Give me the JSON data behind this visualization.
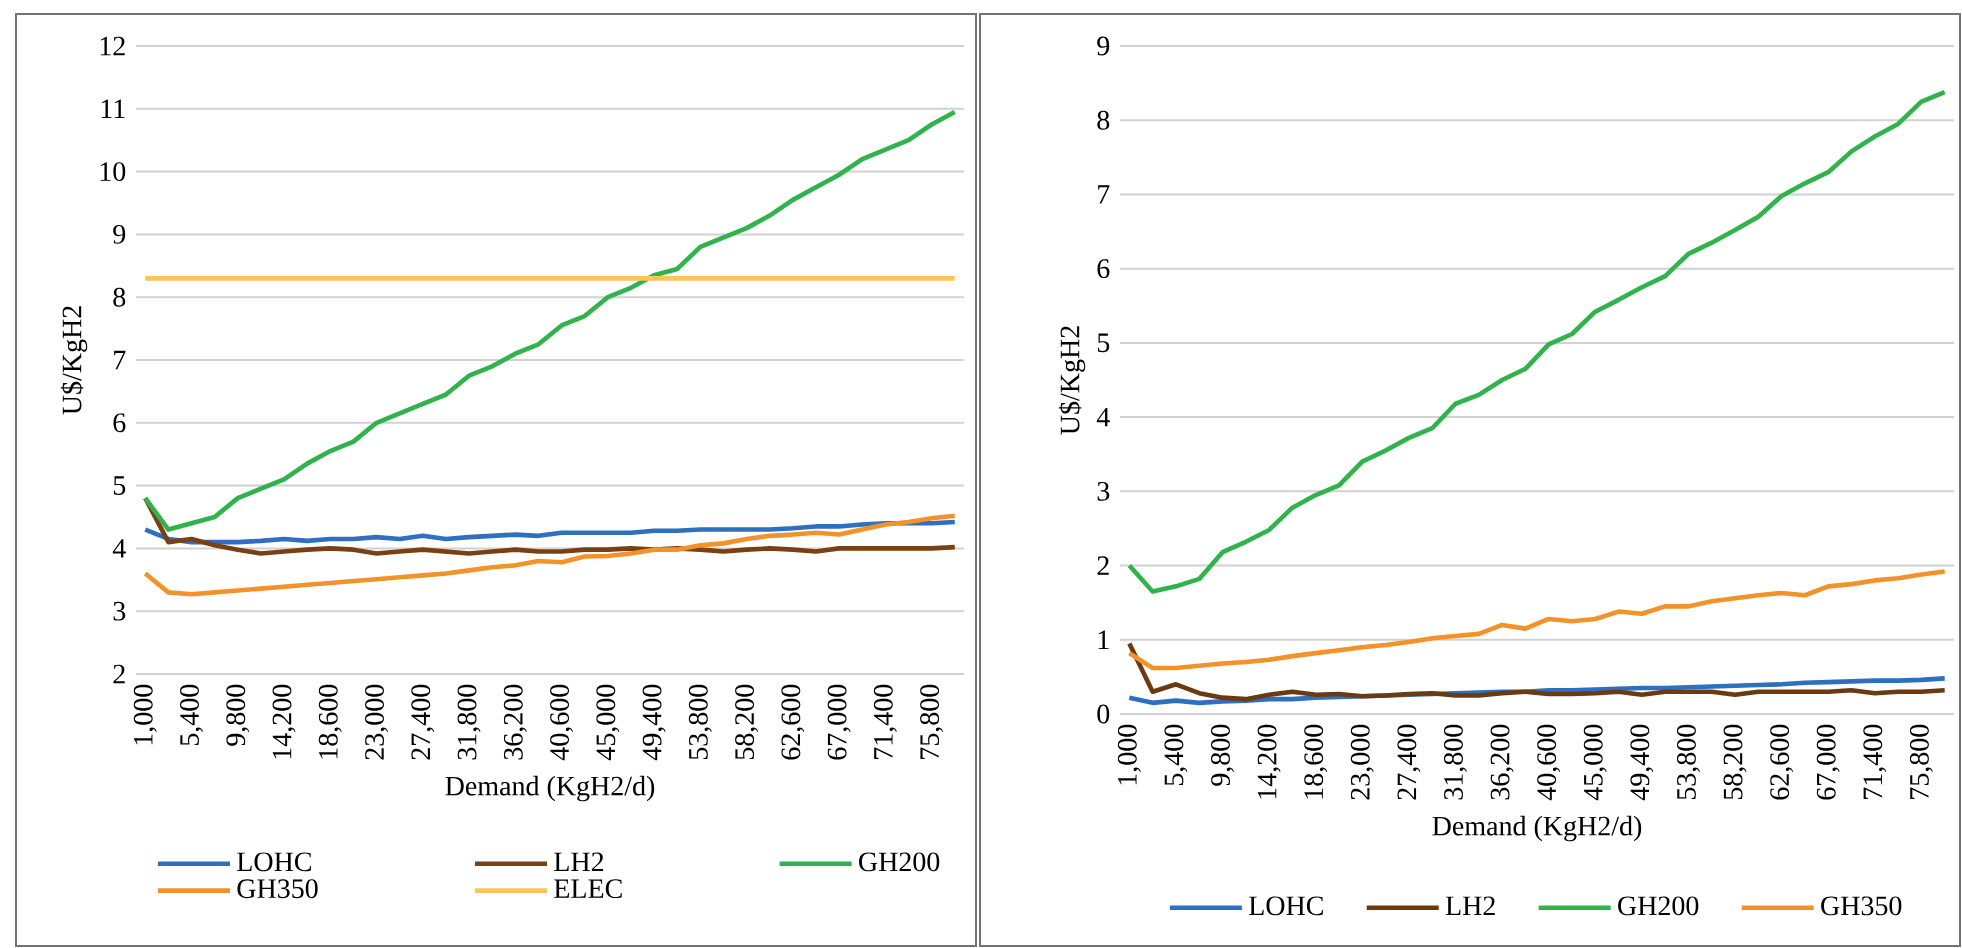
{
  "chart_data": [
    {
      "type": "line",
      "ylabel": "U$/KgH2",
      "xlabel": "Demand (KgH2/d)",
      "grid": "y",
      "legend": "bottom",
      "categories": [
        "1,000",
        null,
        "5,400",
        null,
        "9,800",
        null,
        "14,200",
        null,
        "18,600",
        null,
        "23,000",
        null,
        "27,400",
        null,
        "31,800",
        null,
        "36,200",
        null,
        "40,600",
        null,
        "45,000",
        null,
        "49,400",
        null,
        "53,800",
        null,
        "58,200",
        null,
        "62,600",
        null,
        "67,000",
        null,
        "71,400",
        null,
        "75,800",
        null
      ],
      "ylim": [
        2,
        12
      ],
      "yticks": [
        2,
        3,
        4,
        5,
        6,
        7,
        8,
        9,
        10,
        11,
        12
      ],
      "series": [
        {
          "name": "LOHC",
          "color": "#2e6fc0",
          "values": [
            4.3,
            4.15,
            4.1,
            4.1,
            4.1,
            4.12,
            4.15,
            4.12,
            4.15,
            4.15,
            4.18,
            4.15,
            4.2,
            4.15,
            4.18,
            4.2,
            4.22,
            4.2,
            4.25,
            4.25,
            4.25,
            4.25,
            4.28,
            4.28,
            4.3,
            4.3,
            4.3,
            4.3,
            4.32,
            4.35,
            4.35,
            4.38,
            4.4,
            4.4,
            4.4,
            4.42
          ]
        },
        {
          "name": "LH2",
          "color": "#7b3f14",
          "values": [
            4.8,
            4.1,
            4.15,
            4.05,
            3.98,
            3.92,
            3.95,
            3.98,
            4.0,
            3.98,
            3.92,
            3.95,
            3.98,
            3.95,
            3.92,
            3.95,
            3.98,
            3.95,
            3.95,
            3.98,
            3.98,
            4.0,
            3.98,
            4.0,
            3.98,
            3.95,
            3.98,
            4.0,
            3.98,
            3.95,
            4.0,
            4.0,
            4.0,
            4.0,
            4.0,
            4.02
          ]
        },
        {
          "name": "GH200",
          "color": "#2fb34a",
          "values": [
            4.8,
            4.3,
            4.4,
            4.5,
            4.8,
            4.95,
            5.1,
            5.35,
            5.55,
            5.7,
            6.0,
            6.15,
            6.3,
            6.45,
            6.75,
            6.9,
            7.1,
            7.25,
            7.55,
            7.7,
            8.0,
            8.15,
            8.35,
            8.45,
            8.8,
            8.95,
            9.1,
            9.3,
            9.55,
            9.75,
            9.95,
            10.2,
            10.35,
            10.5,
            10.75,
            10.95
          ]
        },
        {
          "name": "GH350",
          "color": "#f4922a",
          "values": [
            3.6,
            3.3,
            3.27,
            3.3,
            3.33,
            3.36,
            3.39,
            3.42,
            3.45,
            3.48,
            3.51,
            3.54,
            3.57,
            3.6,
            3.65,
            3.7,
            3.73,
            3.8,
            3.78,
            3.87,
            3.88,
            3.92,
            3.98,
            3.98,
            4.05,
            4.08,
            4.15,
            4.2,
            4.22,
            4.25,
            4.22,
            4.3,
            4.38,
            4.42,
            4.48,
            4.52
          ]
        },
        {
          "name": "ELEC",
          "color": "#fbc55a",
          "values": [
            8.3,
            8.3,
            8.3,
            8.3,
            8.3,
            8.3,
            8.3,
            8.3,
            8.3,
            8.3,
            8.3,
            8.3,
            8.3,
            8.3,
            8.3,
            8.3,
            8.3,
            8.3,
            8.3,
            8.3,
            8.3,
            8.3,
            8.3,
            8.3,
            8.3,
            8.3,
            8.3,
            8.3,
            8.3,
            8.3,
            8.3,
            8.3,
            8.3,
            8.3,
            8.3,
            8.3
          ]
        }
      ]
    },
    {
      "type": "line",
      "ylabel": "U$/KgH2",
      "xlabel": "Demand (KgH2/d)",
      "grid": "y",
      "legend": "bottom",
      "categories": [
        "1,000",
        null,
        "5,400",
        null,
        "9,800",
        null,
        "14,200",
        null,
        "18,600",
        null,
        "23,000",
        null,
        "27,400",
        null,
        "31,800",
        null,
        "36,200",
        null,
        "40,600",
        null,
        "45,000",
        null,
        "49,400",
        null,
        "53,800",
        null,
        "58,200",
        null,
        "62,600",
        null,
        "67,000",
        null,
        "71,400",
        null,
        "75,800",
        null
      ],
      "ylim": [
        0,
        9
      ],
      "yticks": [
        0,
        1,
        2,
        3,
        4,
        5,
        6,
        7,
        8,
        9
      ],
      "series": [
        {
          "name": "LOHC",
          "color": "#2e6fc0",
          "values": [
            0.22,
            0.15,
            0.18,
            0.15,
            0.17,
            0.18,
            0.2,
            0.2,
            0.22,
            0.23,
            0.24,
            0.25,
            0.26,
            0.27,
            0.28,
            0.29,
            0.3,
            0.3,
            0.32,
            0.32,
            0.33,
            0.34,
            0.35,
            0.35,
            0.36,
            0.37,
            0.38,
            0.39,
            0.4,
            0.42,
            0.43,
            0.44,
            0.45,
            0.45,
            0.46,
            0.48
          ]
        },
        {
          "name": "LH2",
          "color": "#6b3a10",
          "values": [
            0.95,
            0.3,
            0.4,
            0.28,
            0.22,
            0.2,
            0.26,
            0.3,
            0.26,
            0.27,
            0.24,
            0.25,
            0.27,
            0.28,
            0.25,
            0.25,
            0.28,
            0.3,
            0.27,
            0.27,
            0.28,
            0.3,
            0.26,
            0.3,
            0.3,
            0.3,
            0.26,
            0.3,
            0.3,
            0.3,
            0.3,
            0.32,
            0.28,
            0.3,
            0.3,
            0.32
          ]
        },
        {
          "name": "GH200",
          "color": "#2fb34a",
          "values": [
            2.0,
            1.65,
            1.72,
            1.82,
            2.18,
            2.32,
            2.48,
            2.78,
            2.95,
            3.08,
            3.4,
            3.55,
            3.72,
            3.85,
            4.18,
            4.3,
            4.5,
            4.65,
            4.98,
            5.12,
            5.42,
            5.58,
            5.75,
            5.9,
            6.2,
            6.35,
            6.52,
            6.7,
            6.98,
            7.15,
            7.3,
            7.58,
            7.78,
            7.95,
            8.25,
            8.38
          ]
        },
        {
          "name": "GH350",
          "color": "#f4922a",
          "values": [
            0.82,
            0.62,
            0.62,
            0.65,
            0.68,
            0.7,
            0.73,
            0.78,
            0.82,
            0.86,
            0.9,
            0.93,
            0.97,
            1.02,
            1.05,
            1.08,
            1.2,
            1.15,
            1.28,
            1.25,
            1.28,
            1.38,
            1.35,
            1.45,
            1.45,
            1.52,
            1.56,
            1.6,
            1.63,
            1.6,
            1.72,
            1.75,
            1.8,
            1.83,
            1.88,
            1.92
          ]
        }
      ]
    }
  ]
}
